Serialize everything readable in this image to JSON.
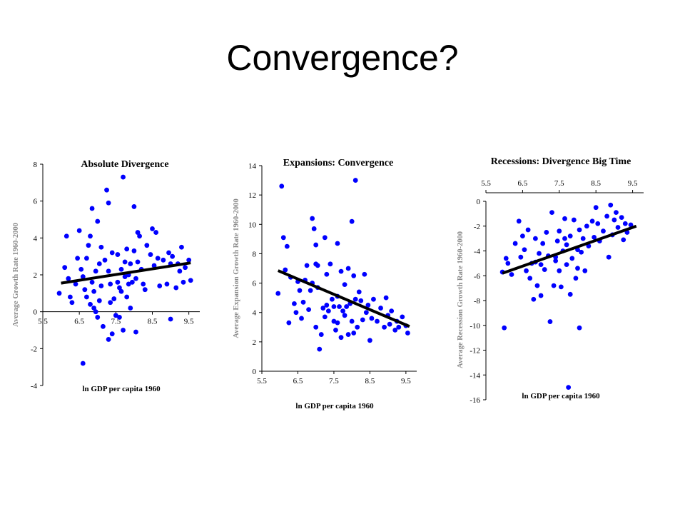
{
  "slide": {
    "title": "Convergence?"
  },
  "chart_data": [
    {
      "id": "left",
      "type": "scatter",
      "title": "Absolute Divergence",
      "xlabel": "ln GDP per capita 1960",
      "ylabel": "Average Growth Rate 1960-2000",
      "xlim": [
        5.5,
        9.8
      ],
      "ylim": [
        -4,
        8
      ],
      "xticks": [
        5.5,
        6.5,
        7.5,
        8.5,
        9.5
      ],
      "xtick_labels": [
        "5.5",
        "6.5",
        "7.5",
        "8.5",
        "9.5"
      ],
      "yticks": [
        -4,
        -2,
        0,
        2,
        4,
        6,
        8
      ],
      "ytick_labels": [
        "-4",
        "-2",
        "0",
        "2",
        "4",
        "6",
        "8"
      ],
      "point_color": "#0000ff",
      "fit_line": {
        "x": [
          6.0,
          9.55
        ],
        "y": [
          1.55,
          2.65
        ]
      },
      "points": [
        [
          5.95,
          1.0
        ],
        [
          6.1,
          2.4
        ],
        [
          6.15,
          4.1
        ],
        [
          6.2,
          1.8
        ],
        [
          6.25,
          0.8
        ],
        [
          6.3,
          0.5
        ],
        [
          6.4,
          1.5
        ],
        [
          6.45,
          2.9
        ],
        [
          6.5,
          4.4
        ],
        [
          6.55,
          2.3
        ],
        [
          6.6,
          1.9
        ],
        [
          6.65,
          1.2
        ],
        [
          6.7,
          0.8
        ],
        [
          6.7,
          2.9
        ],
        [
          6.75,
          3.6
        ],
        [
          6.8,
          0.4
        ],
        [
          6.8,
          4.1
        ],
        [
          6.85,
          1.6
        ],
        [
          6.85,
          5.6
        ],
        [
          6.9,
          0.2
        ],
        [
          6.9,
          1.1
        ],
        [
          6.95,
          2.2
        ],
        [
          6.95,
          0.0
        ],
        [
          7.0,
          4.9
        ],
        [
          7.0,
          -0.3
        ],
        [
          7.05,
          0.6
        ],
        [
          7.05,
          2.6
        ],
        [
          7.1,
          3.5
        ],
        [
          7.1,
          1.4
        ],
        [
          7.15,
          -0.8
        ],
        [
          7.2,
          2.8
        ],
        [
          7.25,
          6.6
        ],
        [
          7.3,
          5.9
        ],
        [
          7.3,
          2.2
        ],
        [
          7.35,
          0.5
        ],
        [
          7.35,
          1.5
        ],
        [
          7.4,
          3.2
        ],
        [
          7.4,
          -1.2
        ],
        [
          7.45,
          0.7
        ],
        [
          7.5,
          -0.2
        ],
        [
          7.55,
          3.1
        ],
        [
          7.55,
          1.6
        ],
        [
          7.6,
          1.3
        ],
        [
          7.6,
          -0.3
        ],
        [
          7.65,
          2.3
        ],
        [
          7.65,
          1.1
        ],
        [
          7.7,
          7.3
        ],
        [
          7.7,
          -1.0
        ],
        [
          7.75,
          2.7
        ],
        [
          7.75,
          1.9
        ],
        [
          7.8,
          3.4
        ],
        [
          7.8,
          0.8
        ],
        [
          7.85,
          2.0
        ],
        [
          7.85,
          1.5
        ],
        [
          7.9,
          0.2
        ],
        [
          7.9,
          2.6
        ],
        [
          7.95,
          1.6
        ],
        [
          8.0,
          5.7
        ],
        [
          8.0,
          3.3
        ],
        [
          8.05,
          1.8
        ],
        [
          8.05,
          -1.1
        ],
        [
          8.1,
          4.3
        ],
        [
          8.1,
          2.7
        ],
        [
          8.15,
          4.1
        ],
        [
          8.2,
          2.3
        ],
        [
          8.25,
          1.5
        ],
        [
          8.3,
          1.2
        ],
        [
          8.35,
          3.6
        ],
        [
          8.45,
          3.1
        ],
        [
          8.5,
          4.5
        ],
        [
          8.55,
          2.5
        ],
        [
          8.6,
          4.3
        ],
        [
          8.65,
          2.9
        ],
        [
          8.7,
          1.4
        ],
        [
          8.8,
          2.8
        ],
        [
          8.9,
          1.5
        ],
        [
          8.95,
          3.2
        ],
        [
          9.0,
          2.6
        ],
        [
          9.0,
          -0.4
        ],
        [
          9.05,
          3.0
        ],
        [
          9.15,
          1.3
        ],
        [
          9.2,
          2.6
        ],
        [
          9.25,
          2.2
        ],
        [
          9.3,
          3.5
        ],
        [
          9.35,
          1.6
        ],
        [
          9.4,
          2.4
        ],
        [
          9.5,
          2.8
        ],
        [
          9.55,
          1.7
        ],
        [
          6.6,
          -2.8
        ],
        [
          7.3,
          -1.5
        ]
      ]
    },
    {
      "id": "mid",
      "type": "scatter",
      "title": "Expansions: Convergence",
      "xlabel": "ln GDP per capita 1960",
      "ylabel": "Average Expansion Growth Rate 1960-2000",
      "xlim": [
        5.5,
        9.8
      ],
      "ylim": [
        0,
        14
      ],
      "xticks": [
        5.5,
        6.5,
        7.5,
        8.5,
        9.5
      ],
      "xtick_labels": [
        "5.5",
        "6.5",
        "7.5",
        "8.5",
        "9.5"
      ],
      "yticks": [
        0,
        2,
        4,
        6,
        8,
        10,
        12,
        14
      ],
      "ytick_labels": [
        "0",
        "2",
        "4",
        "6",
        "8",
        "10",
        "12",
        "14"
      ],
      "point_color": "#0000ff",
      "fit_line": {
        "x": [
          5.95,
          9.6
        ],
        "y": [
          6.85,
          3.05
        ]
      },
      "points": [
        [
          5.95,
          5.3
        ],
        [
          6.05,
          12.6
        ],
        [
          6.1,
          9.1
        ],
        [
          6.15,
          6.9
        ],
        [
          6.2,
          8.5
        ],
        [
          6.25,
          3.3
        ],
        [
          6.3,
          6.4
        ],
        [
          6.4,
          4.6
        ],
        [
          6.45,
          4.0
        ],
        [
          6.5,
          6.1
        ],
        [
          6.55,
          5.5
        ],
        [
          6.6,
          3.6
        ],
        [
          6.65,
          4.7
        ],
        [
          6.7,
          6.2
        ],
        [
          6.75,
          7.2
        ],
        [
          6.8,
          4.2
        ],
        [
          6.85,
          5.5
        ],
        [
          6.9,
          10.4
        ],
        [
          6.9,
          6.0
        ],
        [
          6.95,
          9.7
        ],
        [
          7.0,
          8.6
        ],
        [
          7.0,
          3.0
        ],
        [
          7.05,
          5.7
        ],
        [
          7.05,
          7.2
        ],
        [
          7.1,
          1.5
        ],
        [
          7.15,
          2.5
        ],
        [
          7.2,
          4.3
        ],
        [
          7.25,
          9.1
        ],
        [
          7.25,
          3.7
        ],
        [
          7.3,
          6.6
        ],
        [
          7.35,
          4.1
        ],
        [
          7.4,
          7.3
        ],
        [
          7.45,
          4.9
        ],
        [
          7.5,
          3.4
        ],
        [
          7.5,
          4.4
        ],
        [
          7.55,
          2.8
        ],
        [
          7.6,
          3.3
        ],
        [
          7.6,
          5.1
        ],
        [
          7.65,
          4.4
        ],
        [
          7.7,
          6.8
        ],
        [
          7.7,
          2.3
        ],
        [
          7.75,
          4.1
        ],
        [
          7.8,
          3.8
        ],
        [
          7.8,
          5.9
        ],
        [
          7.85,
          4.4
        ],
        [
          7.9,
          7.0
        ],
        [
          7.9,
          2.5
        ],
        [
          7.95,
          4.6
        ],
        [
          8.0,
          10.2
        ],
        [
          8.0,
          3.4
        ],
        [
          8.05,
          6.5
        ],
        [
          8.05,
          2.6
        ],
        [
          8.1,
          13.0
        ],
        [
          8.1,
          4.9
        ],
        [
          8.15,
          3.0
        ],
        [
          8.2,
          5.4
        ],
        [
          8.25,
          4.8
        ],
        [
          8.3,
          3.5
        ],
        [
          8.35,
          6.6
        ],
        [
          8.4,
          4.0
        ],
        [
          8.45,
          4.5
        ],
        [
          8.5,
          2.1
        ],
        [
          8.55,
          3.6
        ],
        [
          8.6,
          4.9
        ],
        [
          8.7,
          3.4
        ],
        [
          8.8,
          4.3
        ],
        [
          8.9,
          3.0
        ],
        [
          8.95,
          5.0
        ],
        [
          9.0,
          3.8
        ],
        [
          9.05,
          3.2
        ],
        [
          9.1,
          4.1
        ],
        [
          9.2,
          2.8
        ],
        [
          9.25,
          3.4
        ],
        [
          9.3,
          3.0
        ],
        [
          9.4,
          3.7
        ],
        [
          9.5,
          3.1
        ],
        [
          9.55,
          2.6
        ],
        [
          7.0,
          7.3
        ],
        [
          7.6,
          8.7
        ],
        [
          7.3,
          4.5
        ]
      ]
    },
    {
      "id": "right",
      "type": "scatter",
      "title": "Recessions: Divergence Big Time",
      "xlabel": "ln GDP per capita 1960",
      "ylabel": "Average Recession Growth Rate 1960-2000",
      "xlim": [
        5.5,
        9.8
      ],
      "ylim": [
        -16,
        0
      ],
      "xticks": [
        5.5,
        6.5,
        7.5,
        8.5,
        9.5
      ],
      "xtick_labels": [
        "5.5",
        "6.5",
        "7.5",
        "8.5",
        "9.5"
      ],
      "yticks": [
        -16,
        -14,
        -12,
        -10,
        -8,
        -6,
        -4,
        -2,
        0
      ],
      "ytick_labels": [
        "-16",
        "-14",
        "-12",
        "-10",
        "-8",
        "-6",
        "-4",
        "-2",
        "0"
      ],
      "point_color": "#0000ff",
      "fit_line": {
        "x": [
          5.95,
          9.6
        ],
        "y": [
          -5.8,
          -2.0
        ]
      },
      "points": [
        [
          5.95,
          -5.7
        ],
        [
          6.0,
          -10.2
        ],
        [
          6.05,
          -4.6
        ],
        [
          6.1,
          -5.0
        ],
        [
          6.2,
          -5.9
        ],
        [
          6.3,
          -3.4
        ],
        [
          6.4,
          -1.6
        ],
        [
          6.45,
          -4.5
        ],
        [
          6.5,
          -2.8
        ],
        [
          6.55,
          -3.9
        ],
        [
          6.6,
          -5.6
        ],
        [
          6.65,
          -2.3
        ],
        [
          6.7,
          -6.2
        ],
        [
          6.75,
          -5.0
        ],
        [
          6.8,
          -7.9
        ],
        [
          6.85,
          -3.0
        ],
        [
          6.9,
          -6.8
        ],
        [
          6.95,
          -4.2
        ],
        [
          7.0,
          -7.6
        ],
        [
          7.05,
          -3.4
        ],
        [
          7.1,
          -5.5
        ],
        [
          7.15,
          -2.5
        ],
        [
          7.2,
          -4.4
        ],
        [
          7.25,
          -9.7
        ],
        [
          7.3,
          -0.9
        ],
        [
          7.35,
          -6.8
        ],
        [
          7.4,
          -4.5
        ],
        [
          7.45,
          -3.2
        ],
        [
          7.5,
          -5.6
        ],
        [
          7.5,
          -2.4
        ],
        [
          7.55,
          -6.9
        ],
        [
          7.6,
          -4.0
        ],
        [
          7.65,
          -1.4
        ],
        [
          7.7,
          -5.1
        ],
        [
          7.7,
          -3.5
        ],
        [
          7.75,
          -15.0
        ],
        [
          7.8,
          -7.5
        ],
        [
          7.8,
          -2.8
        ],
        [
          7.85,
          -4.6
        ],
        [
          7.9,
          -1.5
        ],
        [
          7.95,
          -6.2
        ],
        [
          8.0,
          -3.9
        ],
        [
          8.0,
          -5.4
        ],
        [
          8.05,
          -10.2
        ],
        [
          8.05,
          -2.3
        ],
        [
          8.1,
          -4.1
        ],
        [
          8.15,
          -3.0
        ],
        [
          8.2,
          -5.6
        ],
        [
          8.25,
          -2.0
        ],
        [
          8.3,
          -3.6
        ],
        [
          8.4,
          -1.6
        ],
        [
          8.45,
          -2.9
        ],
        [
          8.5,
          -0.5
        ],
        [
          8.55,
          -1.8
        ],
        [
          8.6,
          -3.2
        ],
        [
          8.7,
          -2.4
        ],
        [
          8.8,
          -1.2
        ],
        [
          8.85,
          -4.5
        ],
        [
          8.9,
          -0.3
        ],
        [
          8.95,
          -2.7
        ],
        [
          9.0,
          -1.5
        ],
        [
          9.05,
          -0.9
        ],
        [
          9.1,
          -2.1
        ],
        [
          9.2,
          -1.3
        ],
        [
          9.25,
          -3.1
        ],
        [
          9.3,
          -1.8
        ],
        [
          9.35,
          -2.5
        ],
        [
          9.45,
          -1.9
        ],
        [
          7.0,
          -5.1
        ],
        [
          7.4,
          -4.8
        ],
        [
          6.85,
          -4.9
        ],
        [
          7.65,
          -3.0
        ]
      ]
    }
  ]
}
